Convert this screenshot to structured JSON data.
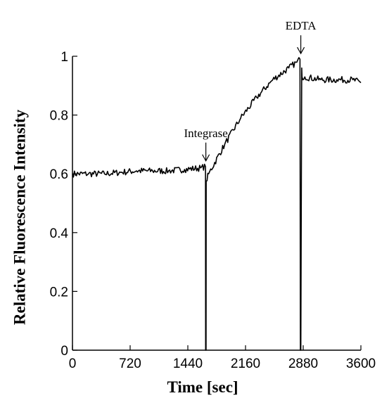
{
  "chart_data": {
    "type": "line",
    "xlabel": "Time [sec]",
    "ylabel": "Relative Fluorescence Intensity",
    "xlim": [
      0,
      3600
    ],
    "ylim": [
      0,
      1
    ],
    "x_ticks": [
      0,
      720,
      1440,
      2160,
      2880,
      3600
    ],
    "y_ticks": [
      0,
      0.2,
      0.4,
      0.6,
      0.8,
      1
    ],
    "x_tick_labels": [
      "0",
      "720",
      "1440",
      "2160",
      "2880",
      "3600"
    ],
    "y_tick_labels": [
      "0",
      "0.2",
      "0.4",
      "0.6",
      "0.8",
      "1"
    ],
    "grid": false,
    "series": [
      {
        "x": [
          0,
          200,
          400,
          600,
          800,
          1000,
          1200,
          1400,
          1600,
          1660,
          1662,
          1667,
          1669,
          1700,
          1900,
          2100,
          2300,
          2500,
          2700,
          2800,
          2840,
          2845,
          2850,
          2862,
          2865,
          2900,
          3100,
          3300,
          3500,
          3600
        ],
        "y": [
          0.6,
          0.6,
          0.6,
          0.605,
          0.61,
          0.61,
          0.61,
          0.615,
          0.62,
          0.625,
          0.0,
          0.0,
          0.575,
          0.6,
          0.7,
          0.79,
          0.86,
          0.92,
          0.96,
          0.98,
          0.99,
          0.0,
          0.0,
          0.96,
          0.93,
          0.93,
          0.92,
          0.92,
          0.92,
          0.91
        ]
      }
    ],
    "annotations": [
      {
        "text": "Integrase",
        "x": 1665,
        "y": 0.625
      },
      {
        "text": "EDTA",
        "x": 2850,
        "y": 0.99
      }
    ]
  }
}
